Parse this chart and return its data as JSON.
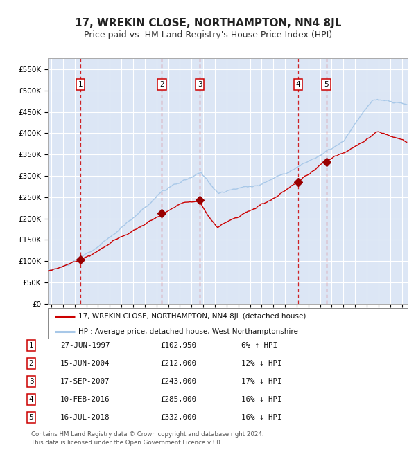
{
  "title": "17, WREKIN CLOSE, NORTHAMPTON, NN4 8JL",
  "subtitle": "Price paid vs. HM Land Registry's House Price Index (HPI)",
  "title_fontsize": 11,
  "subtitle_fontsize": 9,
  "plot_bg_color": "#dce6f5",
  "ylim": [
    0,
    575000
  ],
  "yticks": [
    0,
    50000,
    100000,
    150000,
    200000,
    250000,
    300000,
    350000,
    400000,
    450000,
    500000,
    550000
  ],
  "ytick_labels": [
    "£0",
    "£50K",
    "£100K",
    "£150K",
    "£200K",
    "£250K",
    "£300K",
    "£350K",
    "£400K",
    "£450K",
    "£500K",
    "£550K"
  ],
  "xlim_start": 1994.7,
  "xlim_end": 2025.5,
  "grid_color": "#ffffff",
  "hpi_line_color": "#a8c8e8",
  "price_line_color": "#cc0000",
  "sale_marker_color": "#990000",
  "vline_color": "#cc0000",
  "sales": [
    {
      "label": "1",
      "date_dec": 1997.49,
      "price": 102950
    },
    {
      "label": "2",
      "date_dec": 2004.45,
      "price": 212000
    },
    {
      "label": "3",
      "date_dec": 2007.71,
      "price": 243000
    },
    {
      "label": "4",
      "date_dec": 2016.11,
      "price": 285000
    },
    {
      "label": "5",
      "date_dec": 2018.54,
      "price": 332000
    }
  ],
  "table_rows": [
    {
      "num": "1",
      "date": "27-JUN-1997",
      "price": "£102,950",
      "pct": "6% ↑ HPI"
    },
    {
      "num": "2",
      "date": "15-JUN-2004",
      "price": "£212,000",
      "pct": "12% ↓ HPI"
    },
    {
      "num": "3",
      "date": "17-SEP-2007",
      "price": "£243,000",
      "pct": "17% ↓ HPI"
    },
    {
      "num": "4",
      "date": "10-FEB-2016",
      "price": "£285,000",
      "pct": "16% ↓ HPI"
    },
    {
      "num": "5",
      "date": "16-JUL-2018",
      "price": "£332,000",
      "pct": "16% ↓ HPI"
    }
  ],
  "legend_line1": "17, WREKIN CLOSE, NORTHAMPTON, NN4 8JL (detached house)",
  "legend_line2": "HPI: Average price, detached house, West Northamptonshire",
  "footer1": "Contains HM Land Registry data © Crown copyright and database right 2024.",
  "footer2": "This data is licensed under the Open Government Licence v3.0."
}
